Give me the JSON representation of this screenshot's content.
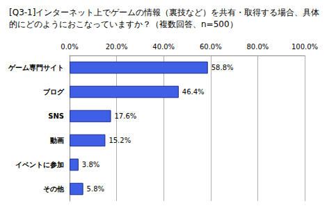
{
  "chart_data": {
    "type": "bar",
    "orientation": "horizontal",
    "title": "[Q3-1]インターネット上でゲームの情報（裏技など）を共有・取得する場合、具体的にどのようにおこなっていますか？（複数回答、n=500）",
    "categories": [
      "ゲーム専門サイト",
      "ブログ",
      "SNS",
      "動画",
      "イベントに参加",
      "その他"
    ],
    "values": [
      58.8,
      46.4,
      17.6,
      15.2,
      3.8,
      5.8
    ],
    "value_labels": [
      "58.8%",
      "46.4%",
      "17.6%",
      "15.2%",
      "3.8%",
      "5.8%"
    ],
    "data_labels": true,
    "color": "#3f5fe6",
    "xlim": [
      0,
      100
    ],
    "xticks": [
      {
        "value": 0,
        "label": "0.0%"
      },
      {
        "value": 20,
        "label": "20.0%"
      },
      {
        "value": 40,
        "label": "40.0%"
      },
      {
        "value": 60,
        "label": "60.0%"
      },
      {
        "value": 80,
        "label": "80.0%"
      },
      {
        "value": 100,
        "label": "100.0%"
      }
    ],
    "grid": true
  }
}
